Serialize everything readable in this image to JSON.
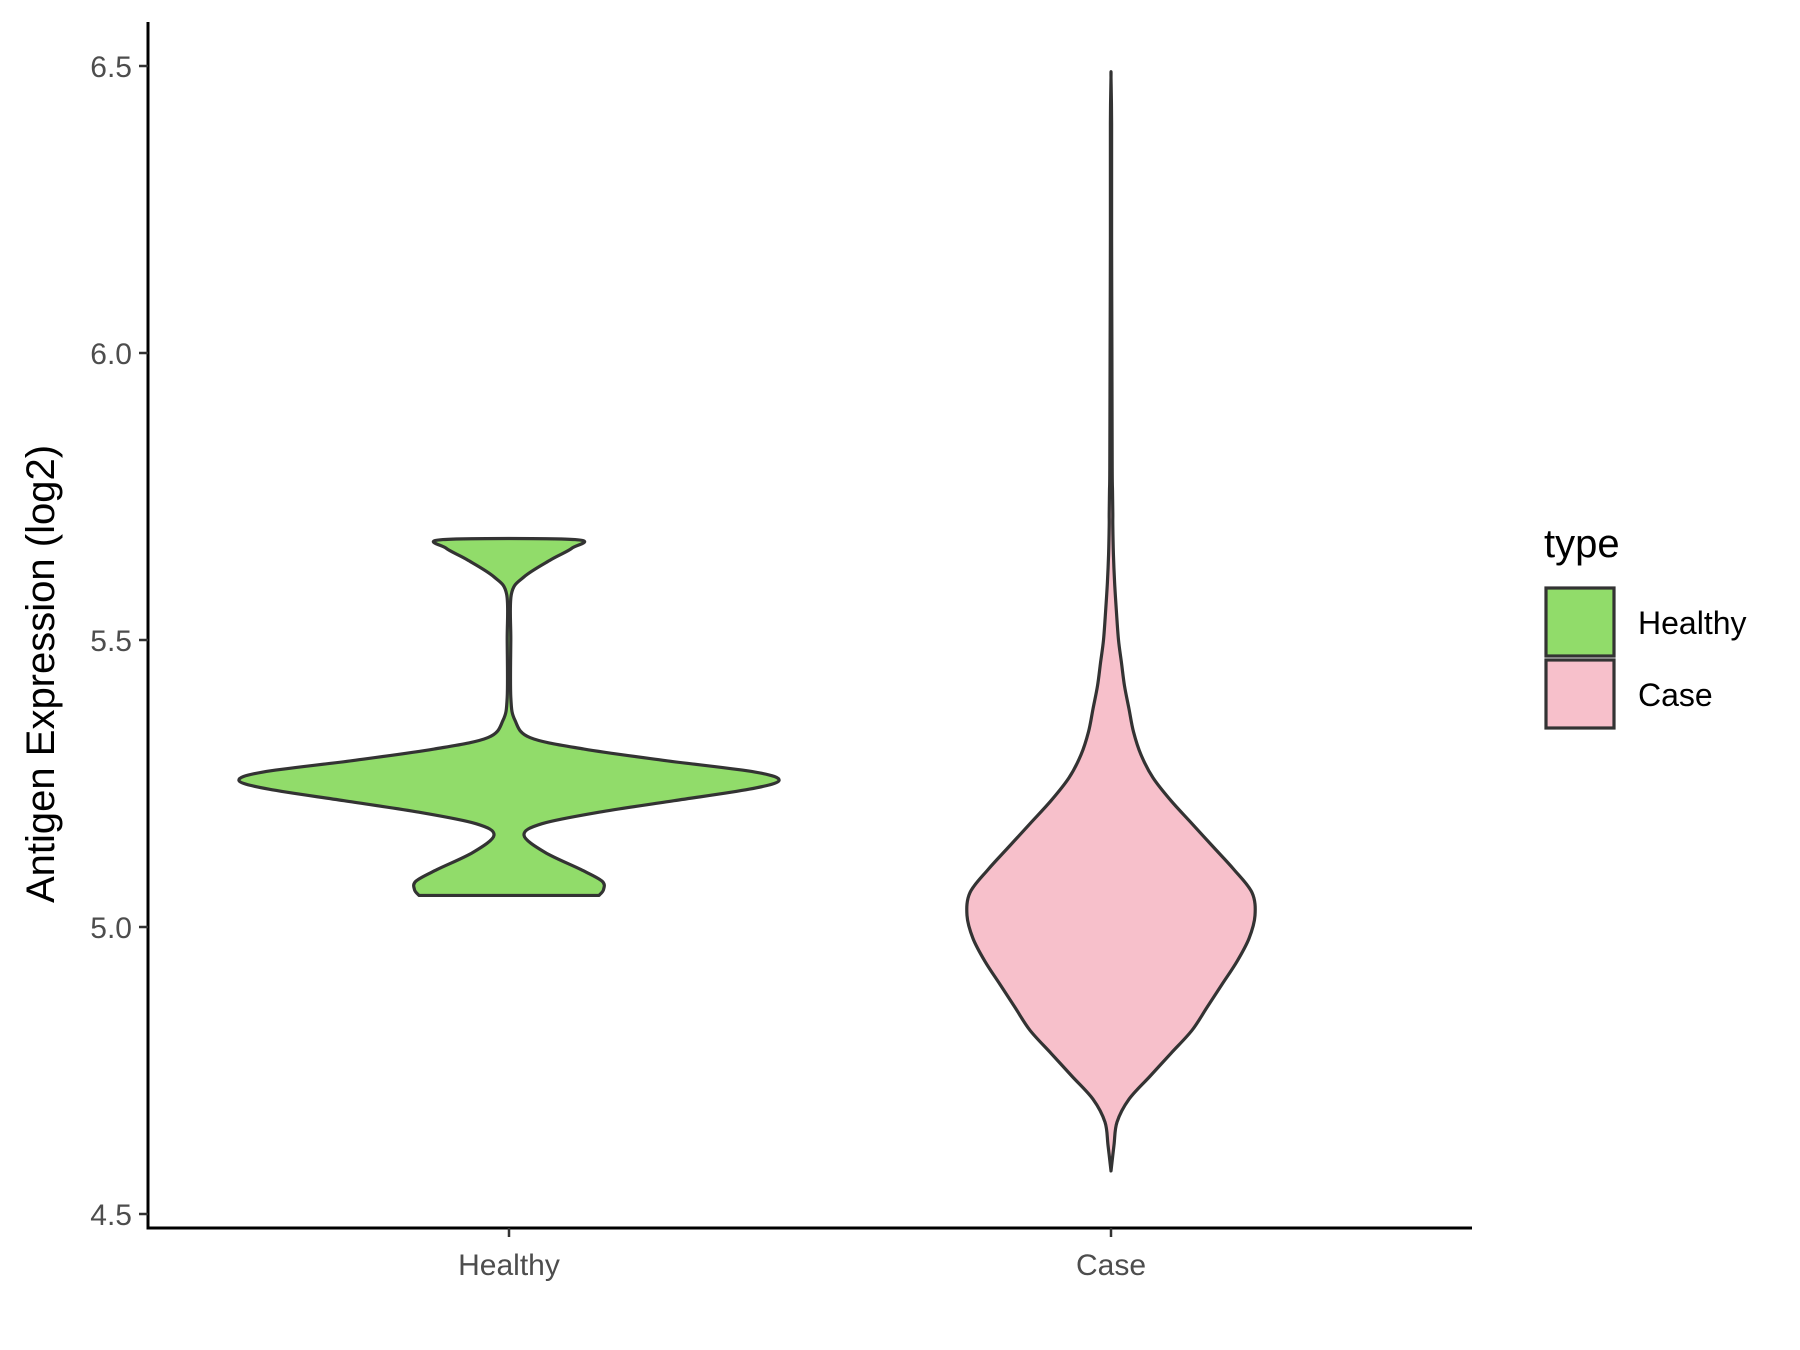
{
  "chart_data": {
    "type": "violin",
    "ylabel": "Antigen Expression (log2)",
    "xlabel": "",
    "ylim": [
      4.5,
      6.5
    ],
    "yticks": [
      "4.5",
      "5.0",
      "5.5",
      "6.0",
      "6.5"
    ],
    "categories": [
      "Healthy",
      "Case"
    ],
    "grid": false,
    "legend": {
      "title": "type",
      "placement": "right",
      "entries": [
        {
          "label": "Healthy",
          "color": "#91dc6a"
        },
        {
          "label": "Case",
          "color": "#f7c0cb"
        }
      ]
    },
    "series": [
      {
        "name": "Healthy",
        "color": "#91dc6a",
        "range": [
          5.055,
          5.675
        ],
        "profile": [
          [
            5.055,
            0.3
          ],
          [
            5.065,
            0.315
          ],
          [
            5.08,
            0.31
          ],
          [
            5.1,
            0.24
          ],
          [
            5.13,
            0.12
          ],
          [
            5.16,
            0.05
          ],
          [
            5.18,
            0.11
          ],
          [
            5.2,
            0.3
          ],
          [
            5.22,
            0.55
          ],
          [
            5.24,
            0.8
          ],
          [
            5.255,
            0.9
          ],
          [
            5.27,
            0.82
          ],
          [
            5.29,
            0.52
          ],
          [
            5.31,
            0.25
          ],
          [
            5.33,
            0.07
          ],
          [
            5.36,
            0.02
          ],
          [
            5.4,
            0.006
          ],
          [
            5.5,
            0.006
          ],
          [
            5.58,
            0.008
          ],
          [
            5.61,
            0.05
          ],
          [
            5.64,
            0.14
          ],
          [
            5.66,
            0.21
          ],
          [
            5.675,
            0.22
          ]
        ]
      },
      {
        "name": "Case",
        "color": "#f7c0cb",
        "range": [
          4.575,
          6.48
        ],
        "profile": [
          [
            4.575,
            0.0
          ],
          [
            4.62,
            0.01
          ],
          [
            4.66,
            0.02
          ],
          [
            4.7,
            0.06
          ],
          [
            4.74,
            0.13
          ],
          [
            4.78,
            0.2
          ],
          [
            4.82,
            0.27
          ],
          [
            4.86,
            0.32
          ],
          [
            4.9,
            0.37
          ],
          [
            4.94,
            0.42
          ],
          [
            4.98,
            0.46
          ],
          [
            5.02,
            0.48
          ],
          [
            5.06,
            0.47
          ],
          [
            5.1,
            0.41
          ],
          [
            5.14,
            0.34
          ],
          [
            5.18,
            0.27
          ],
          [
            5.22,
            0.2
          ],
          [
            5.26,
            0.14
          ],
          [
            5.3,
            0.1
          ],
          [
            5.34,
            0.075
          ],
          [
            5.38,
            0.06
          ],
          [
            5.42,
            0.045
          ],
          [
            5.46,
            0.035
          ],
          [
            5.5,
            0.025
          ],
          [
            5.55,
            0.018
          ],
          [
            5.6,
            0.012
          ],
          [
            5.65,
            0.008
          ],
          [
            5.7,
            0.006
          ],
          [
            5.72,
            0.006
          ],
          [
            5.76,
            0.005
          ],
          [
            5.8,
            0.004
          ],
          [
            6.0,
            0.003
          ],
          [
            6.2,
            0.002
          ],
          [
            6.4,
            0.002
          ],
          [
            6.48,
            0.0
          ]
        ]
      }
    ]
  }
}
